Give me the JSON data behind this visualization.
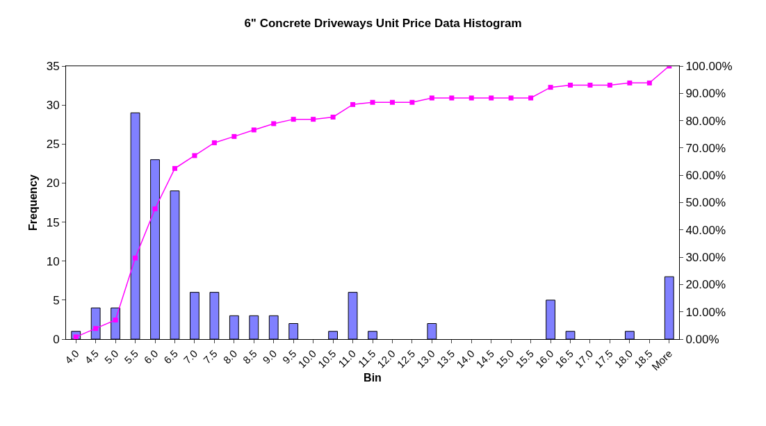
{
  "chart_data": {
    "type": "bar",
    "title": "6\" Concrete Driveways Unit Price Data Histogram",
    "xlabel": "Bin",
    "ylabel": "Frequency",
    "categories": [
      "4.0",
      "4.5",
      "5.0",
      "5.5",
      "6.0",
      "6.5",
      "7.0",
      "7.5",
      "8.0",
      "8.5",
      "9.0",
      "9.5",
      "10.0",
      "10.5",
      "11.0",
      "11.5",
      "12.0",
      "12.5",
      "13.0",
      "13.5",
      "14.0",
      "14.5",
      "15.0",
      "15.5",
      "16.0",
      "16.5",
      "17.0",
      "17.5",
      "18.0",
      "18.5",
      "More"
    ],
    "series": [
      {
        "color": "#8080ff",
        "values": [
          1,
          4,
          4,
          29,
          23,
          19,
          6,
          6,
          3,
          3,
          3,
          2,
          0,
          1,
          6,
          1,
          0,
          0,
          2,
          0,
          0,
          0,
          0,
          0,
          5,
          1,
          0,
          0,
          1,
          0,
          8
        ]
      },
      {
        "type": "line",
        "axis": "y2",
        "color": "#ff00ff",
        "marker": "square",
        "line_style": "solid",
        "values": [
          0.8,
          3.9,
          7.0,
          29.7,
          47.7,
          62.5,
          67.2,
          71.9,
          74.2,
          76.6,
          78.9,
          80.5,
          80.5,
          81.3,
          85.9,
          86.7,
          86.7,
          86.7,
          88.3,
          88.3,
          88.3,
          88.3,
          88.3,
          88.3,
          92.2,
          93.0,
          93.0,
          93.0,
          93.8,
          93.8,
          100
        ]
      }
    ],
    "ylim": [
      0,
      35
    ],
    "yticks": [
      0,
      5,
      10,
      15,
      20,
      25,
      30,
      35
    ],
    "y2lim": [
      0,
      100
    ],
    "y2ticks": [
      {
        "value": 0,
        "label": "0.00%"
      },
      {
        "value": 10,
        "label": "10.00%"
      },
      {
        "value": 20,
        "label": "20.00%"
      },
      {
        "value": 30,
        "label": "30.00%"
      },
      {
        "value": 40,
        "label": "40.00%"
      },
      {
        "value": 50,
        "label": "50.00%"
      },
      {
        "value": 60,
        "label": "60.00%"
      },
      {
        "value": 70,
        "label": "70.00%"
      },
      {
        "value": 80,
        "label": "80.00%"
      },
      {
        "value": 90,
        "label": "90.00%"
      },
      {
        "value": 100,
        "label": "100.00%"
      }
    ],
    "grid": false
  }
}
